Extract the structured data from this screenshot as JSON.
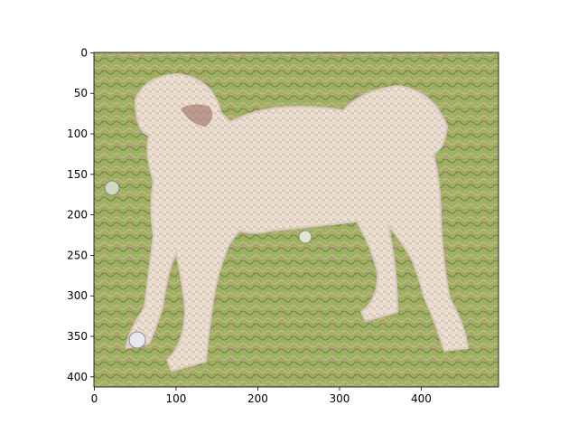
{
  "chart_data": {
    "type": "image",
    "xlim": [
      -0.5,
      494.5
    ],
    "ylim": [
      412.5,
      -0.5
    ],
    "xticks": [
      0,
      100,
      200,
      300,
      400
    ],
    "yticks": [
      0,
      50,
      100,
      150,
      200,
      250,
      300,
      350,
      400
    ]
  }
}
